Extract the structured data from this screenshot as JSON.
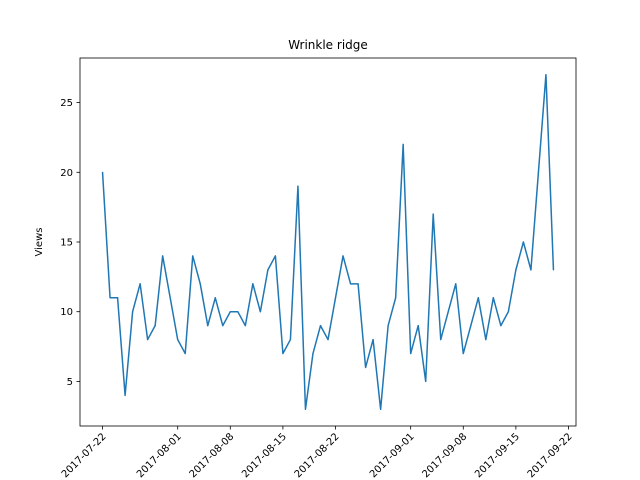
{
  "chart_data": {
    "type": "line",
    "title": "Wrinkle ridge",
    "xlabel": "",
    "ylabel": "Views",
    "ylim": [
      1.8,
      28.2
    ],
    "yticks": [
      5,
      10,
      15,
      20,
      25
    ],
    "xticks": [
      {
        "index": 0,
        "label": "2017-07-22"
      },
      {
        "index": 10,
        "label": "2017-08-01"
      },
      {
        "index": 17,
        "label": "2017-08-08"
      },
      {
        "index": 24,
        "label": "2017-08-15"
      },
      {
        "index": 31,
        "label": "2017-08-22"
      },
      {
        "index": 41,
        "label": "2017-09-01"
      },
      {
        "index": 48,
        "label": "2017-09-08"
      },
      {
        "index": 55,
        "label": "2017-09-15"
      },
      {
        "index": 62,
        "label": "2017-09-22"
      }
    ],
    "x_start": "2017-07-22",
    "x_step": "1 day",
    "grid": false,
    "series": [
      {
        "name": "Views",
        "color": "#1f77b4",
        "values": [
          20,
          11,
          11,
          4,
          10,
          12,
          8,
          9,
          14,
          11,
          8,
          7,
          14,
          12,
          9,
          11,
          9,
          10,
          10,
          9,
          12,
          10,
          13,
          14,
          7,
          8,
          19,
          3,
          7,
          9,
          8,
          11,
          14,
          12,
          12,
          6,
          8,
          3,
          9,
          11,
          22,
          7,
          9,
          5,
          17,
          8,
          10,
          12,
          7,
          9,
          11,
          8,
          11,
          9,
          10,
          13,
          15,
          13,
          20,
          27,
          13
        ]
      }
    ]
  }
}
